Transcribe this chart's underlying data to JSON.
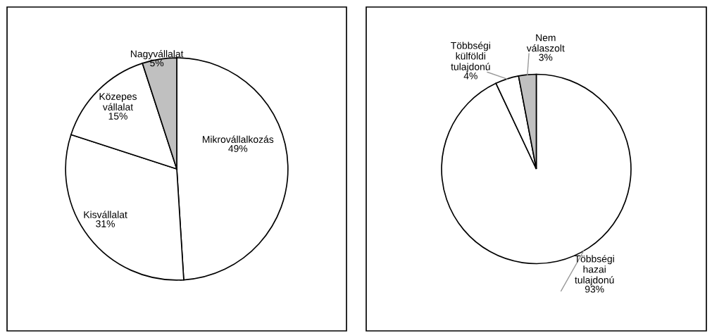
{
  "chart_data": [
    {
      "type": "pie",
      "categories": [
        "Mikrovállalkozás",
        "Kisvállalat",
        "Közepes vállalat",
        "Nagyvállalat"
      ],
      "values": [
        49,
        31,
        15,
        5
      ],
      "value_labels": [
        "49%",
        "31%",
        "15%",
        "5%"
      ],
      "colors": [
        "#ffffff",
        "#ffffff",
        "#ffffff",
        "#c0c0c0"
      ]
    },
    {
      "type": "pie",
      "categories": [
        "Többségi hazai tulajdonú",
        "Többségi külföldi tulajdonú",
        "Nem válaszolt"
      ],
      "values": [
        93,
        4,
        3
      ],
      "value_labels": [
        "93%",
        "4%",
        "3%"
      ],
      "colors": [
        "#ffffff",
        "#ffffff",
        "#c0c0c0"
      ]
    }
  ]
}
